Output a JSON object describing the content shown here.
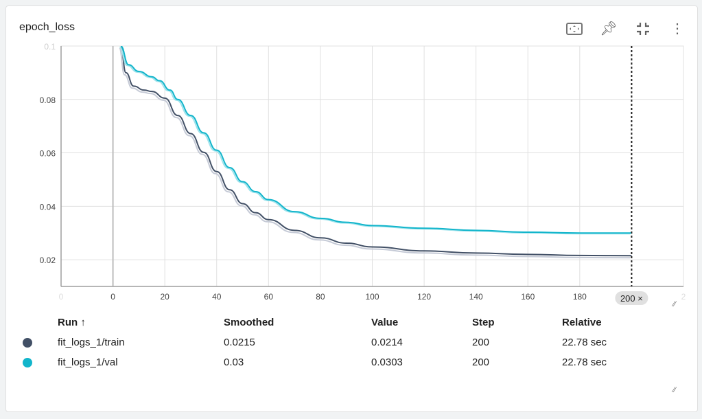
{
  "title": "epoch_loss",
  "icons": [
    "fit-to-data-icon",
    "pin-icon",
    "collapse-icon",
    "more-vert-icon"
  ],
  "chart_data": {
    "type": "line",
    "title": "epoch_loss",
    "xlabel": "",
    "ylabel": "",
    "xlim": [
      -20,
      220
    ],
    "ylim": [
      0.01,
      0.1
    ],
    "xticks": [
      "0",
      "0",
      "20",
      "40",
      "60",
      "80",
      "100",
      "120",
      "140",
      "160",
      "180",
      "2"
    ],
    "yticks": [
      "0.1",
      "0.08",
      "0.06",
      "0.04",
      "0.02"
    ],
    "ytick_values": [
      0.1,
      0.08,
      0.06,
      0.04,
      0.02
    ],
    "xtick_values": [
      -20,
      0,
      20,
      40,
      60,
      80,
      100,
      120,
      140,
      160,
      180,
      220
    ],
    "cursor": {
      "step": 200,
      "label": "200 ×"
    },
    "grid": true,
    "series": [
      {
        "name": "fit_logs_1/train",
        "color": "#425066",
        "x": [
          3,
          5,
          8,
          12,
          15,
          20,
          25,
          30,
          35,
          40,
          45,
          50,
          55,
          60,
          70,
          80,
          90,
          100,
          120,
          140,
          160,
          180,
          200
        ],
        "y": [
          0.1,
          0.09,
          0.085,
          0.0835,
          0.083,
          0.0805,
          0.074,
          0.0672,
          0.0602,
          0.053,
          0.0462,
          0.041,
          0.0376,
          0.035,
          0.031,
          0.0282,
          0.0262,
          0.0248,
          0.0233,
          0.0225,
          0.022,
          0.0216,
          0.0215
        ]
      },
      {
        "name": "fit_logs_1/val",
        "color": "#12b5cb",
        "x": [
          3,
          6,
          10,
          15,
          18,
          22,
          25,
          30,
          35,
          40,
          45,
          50,
          55,
          60,
          70,
          80,
          90,
          100,
          120,
          140,
          160,
          180,
          200
        ],
        "y": [
          0.1,
          0.093,
          0.0905,
          0.0885,
          0.087,
          0.0835,
          0.08,
          0.074,
          0.0675,
          0.061,
          0.0545,
          0.0492,
          0.0455,
          0.0425,
          0.038,
          0.0355,
          0.034,
          0.0328,
          0.0318,
          0.031,
          0.0303,
          0.03,
          0.03
        ]
      }
    ]
  },
  "table": {
    "headers": [
      "Run ↑",
      "Smoothed",
      "Value",
      "Step",
      "Relative"
    ],
    "rows": [
      {
        "run": "fit_logs_1/train",
        "smoothed": "0.0215",
        "value": "0.0214",
        "step": "200",
        "relative": "22.78 sec",
        "color": "#425066"
      },
      {
        "run": "fit_logs_1/val",
        "smoothed": "0.03",
        "value": "0.0303",
        "step": "200",
        "relative": "22.78 sec",
        "color": "#12b5cb"
      }
    ]
  }
}
